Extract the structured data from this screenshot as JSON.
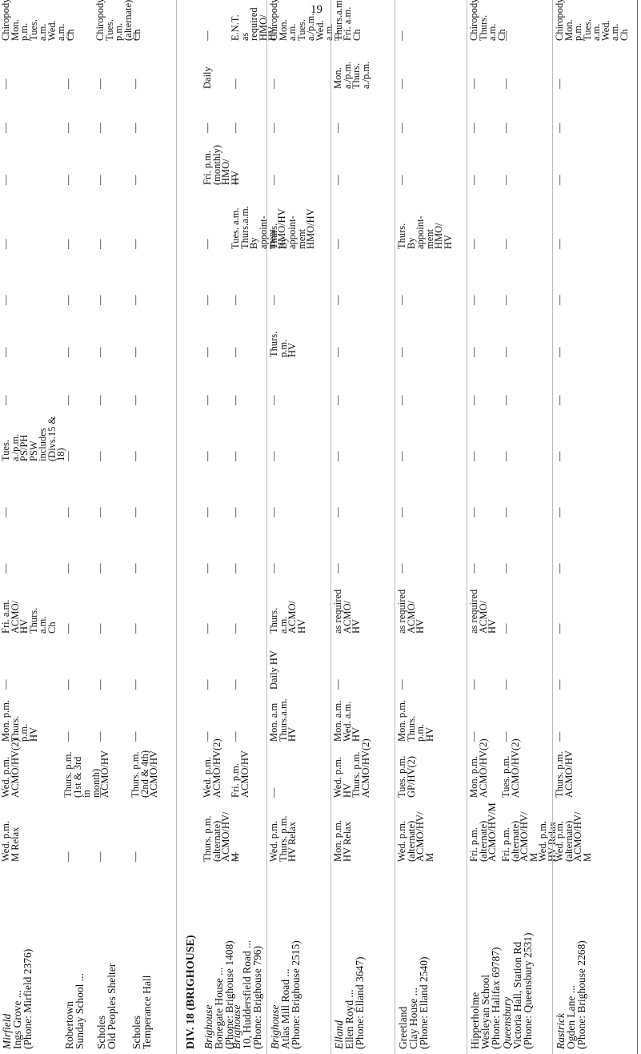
{
  "page_number": "19",
  "table": {
    "rows": [
      {
        "town": "Mirfield",
        "town_italic": true,
        "lines": [
          "Ings Grove ...",
          "(Phone: Mirfield 2376)"
        ],
        "cells": [
          "Wed. p.m.\nM Relax",
          "Wed. p.m.\nACMO/HV(2)",
          "Mon. p.m.\nThurs.\np.m.\nHV",
          "—",
          "Fri. a.m.\nACMO/\nHV\nThurs.\na.m.\nCh",
          "—",
          "—",
          "Tues.\na./p.m.\nPS/PH\nPSW\nincludes\n(Divs.15 &\n18)",
          "—",
          "—",
          "—",
          "—",
          "—",
          "—",
          "—",
          "Chiropody\nMon.\np.m.\nTues.\na.m.\nWed. a.m.\nCh"
        ]
      },
      {
        "town": "Robertown",
        "town_italic": false,
        "lines": [
          "Sunday School ..."
        ],
        "cells": [
          "—",
          "Thurs. p.m.\n(1st & 3rd in\nmonth)\nACMO/HV",
          "—",
          "—",
          "—",
          "—",
          "—",
          "—",
          "—",
          "—",
          "—",
          "—",
          "—",
          "—",
          "—",
          "—"
        ]
      },
      {
        "town": "Scholes",
        "town_italic": false,
        "lines": [
          "Old Peoples Shelter"
        ],
        "cells": [
          "—",
          "—",
          "—",
          "—",
          "—",
          "—",
          "—",
          "—",
          "—",
          "—",
          "—",
          "—",
          "—",
          "—",
          "—",
          "Chiropody\nTues. p.m.\n(alternate)\nCh"
        ]
      },
      {
        "town": "Scholes",
        "town_italic": false,
        "lines": [
          "Temperance Hall"
        ],
        "cells": [
          "—",
          "Thurs. p.m.\n(2nd & 4th)\nACMO/HV",
          "—",
          "—",
          "—",
          "—",
          "—",
          "—",
          "—",
          "—",
          "—",
          "—",
          "—",
          "—",
          "—",
          "—"
        ]
      },
      {
        "heading": "DIV. 18 (BRIGHOUSE)"
      },
      {
        "town": "Brighouse",
        "town_italic": true,
        "lines": [
          "Bonegate House ...",
          "(Phone: Brighouse 1408)"
        ],
        "cells": [
          "Thurs. p.m.\n(alternate)\nACMO/HV/\nM",
          "Wed. p.m.\nACMO/HV(2)",
          "—",
          "—",
          "—",
          "—",
          "—",
          "—",
          "—",
          "—",
          "—",
          "—",
          "Fri. p.m.\n(monthly)\nHMO/\nHV",
          "—",
          "Daily",
          "—"
        ]
      },
      {
        "town": "Brighouse",
        "town_italic": true,
        "lines": [
          "10, Huddersfield Road ...",
          "(Phone: Brighouse 796)"
        ],
        "cells": [
          "—",
          "Fri. p.m.\nACMO/HV",
          "—",
          "—",
          "—",
          "—",
          "—",
          "—",
          "—",
          "—",
          "—",
          "Tues. a.m.\nThurs.a.m.\nBy\nappoint-\nment\nHMO/HV",
          "—",
          "—",
          "—",
          "E.N.T.\nas required\nHMO/\nHV"
        ]
      },
      {
        "town": "Brighouse",
        "town_italic": true,
        "lines": [
          "Atlas Mill Road ...",
          "(Phone: Brighouse 2515)"
        ],
        "cells": [
          "Wed. p.m.\nThurs. p.m.\nHV Relax",
          "—",
          "Mon. a.m\nThurs.a.m.\nHV",
          "Daily HV",
          "Thurs.\na.m.\nACMO/\nHV",
          "—",
          "—",
          "—",
          "—",
          "Thurs.\np.m.\nHV",
          "—",
          "Thurs.\nBy\nappoint-\nment\nHMO/HV",
          "—",
          "—",
          "—",
          "Chiropody\nMon. a.m.\nTues.\na./p.m.\nWed. a.m.\nThurs.a.m.\nFri. a.m.\nCh"
        ]
      },
      {
        "town": "Elland",
        "town_italic": true,
        "lines": [
          "Ellen Royd ...",
          "(Phone: Elland 3647)"
        ],
        "cells": [
          "Mon. p.m.\nHV Relax",
          "Wed. p.m.\nHV\nThurs. p.m.\nACMO/HV(2)",
          "Mon. a.m.\nWed. a.m.\nHV",
          "—",
          "as required\nACMO/\nHV",
          "—",
          "—",
          "—",
          "—",
          "—",
          "—",
          "—",
          "—",
          "—",
          "Mon.\na./p.m.\nThurs.\na./p.m.",
          "—"
        ]
      },
      {
        "town": "Greetland",
        "town_italic": false,
        "lines": [
          "Clay House ...",
          "(Phone: Elland 2540)"
        ],
        "cells": [
          "Wed. p.m.\n(alternate)\nACMO/HV/\nM",
          "Tues. p.m.\nGP/HV(2)",
          "Mon. p.m.\nThurs.\np.m.\nHV",
          "—",
          "as required\nACMO/\nHV",
          "—",
          "—",
          "—",
          "—",
          "—",
          "—",
          "Thurs.\nBy\nappoint-\nment\nHMO/\nHV",
          "—",
          "—",
          "—",
          "—"
        ]
      },
      {
        "town": "Hipperholme",
        "town_italic": false,
        "lines": [
          "Wesleyan School",
          "(Phone: Halifax 69787)"
        ],
        "cells": [
          "Fri. p.m.\n(alternate)\nACMO/HV/M",
          "Mon. p.m.\nACMO/HV(2)",
          "—",
          "—",
          "as required\nACMO/\nHV",
          "—",
          "—",
          "—",
          "—",
          "—",
          "—",
          "—",
          "—",
          "—",
          "—",
          "Chiropody\nThurs.\na.m.\nCh"
        ]
      },
      {
        "town": "Queensbury",
        "town_italic": true,
        "lines": [
          "Victoria Hall, Station Rd",
          "(Phone: Queensbury 2531)"
        ],
        "cells": [
          "Fri. p.m.\n(alternate)\nACMO/HV/\nM\nWed. p.m.\nHV Relax",
          "Tues. p.m.\nACMO/HV(2)",
          "—",
          "—",
          "—",
          "—",
          "—",
          "—",
          "—",
          "—",
          "—",
          "—",
          "—",
          "—",
          "—",
          "—"
        ]
      },
      {
        "town": "Rastrick",
        "town_italic": true,
        "lines": [
          "Ogden Lane ...",
          "(Phone: Brighouse 2268)"
        ],
        "cells": [
          "Wed. p.m.\n(alternate)\nACMO/HV/\nM",
          "Thurs. p.m.\nACMO/HV",
          "—",
          "—",
          "—",
          "—",
          "—",
          "—",
          "—",
          "—",
          "—",
          "—",
          "—",
          "—",
          "—",
          "Chiropody\nMon. p.m.\nTues. a.m.\nWed. a.m.\nCh"
        ]
      }
    ]
  }
}
